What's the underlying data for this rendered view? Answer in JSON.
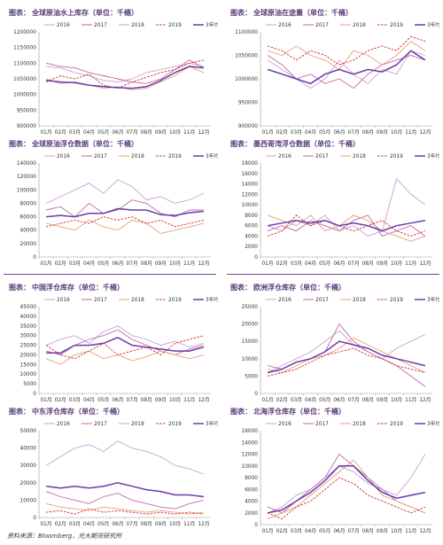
{
  "source_note": "资料来源：Bloomberg，光大期货研究所",
  "colors": {
    "2016": "#c9a0d9",
    "2017": "#c06aa0",
    "2018": "#e4a07a",
    "2019": "#d42a2a",
    "avg": "#6a3aa8"
  },
  "chart_data": [
    {
      "type": "line",
      "title_label": "图表：",
      "title": "全球原油水上库存（单位：千桶）",
      "months": [
        "01月",
        "02月",
        "03月",
        "04月",
        "05月",
        "06月",
        "07月",
        "08月",
        "09月",
        "10月",
        "11月",
        "12月"
      ],
      "yticks": [
        900000,
        950000,
        1000000,
        1050000,
        1100000,
        1150000,
        1200000
      ],
      "ylim": [
        900000,
        1200000
      ],
      "legend": [
        "2016",
        "2017",
        "2018",
        "2019",
        "3年均值"
      ],
      "series": [
        {
          "name": "2016",
          "key": "2016",
          "values": [
            1090000,
            1085000,
            1070000,
            1060000,
            1045000,
            1040000,
            1050000,
            1070000,
            1080000,
            1090000,
            1100000,
            1090000
          ]
        },
        {
          "name": "2017",
          "key": "2017",
          "values": [
            1100000,
            1090000,
            1085000,
            1070000,
            1060000,
            1050000,
            1040000,
            1035000,
            1050000,
            1080000,
            1110000,
            1085000
          ]
        },
        {
          "name": "2018",
          "key": "2018",
          "values": [
            1050000,
            1035000,
            1040000,
            1030000,
            1020000,
            1025000,
            1015000,
            1020000,
            1040000,
            1060000,
            1090000,
            1070000
          ]
        },
        {
          "name": "2019",
          "key": "2019",
          "dashed": true,
          "values": [
            1040000,
            1060000,
            1050000,
            1065000,
            1030000,
            1020000,
            1040000,
            1055000,
            1070000,
            1080000,
            1100000,
            1110000
          ]
        },
        {
          "name": "3年均值",
          "key": "avg",
          "values": [
            1045000,
            1040000,
            1038000,
            1030000,
            1025000,
            1022000,
            1020000,
            1025000,
            1045000,
            1070000,
            1090000,
            1085000
          ]
        }
      ]
    },
    {
      "type": "line",
      "title_label": "图表：",
      "title": "全球原油在途量（单位：千桶）",
      "months": [
        "01月",
        "02月",
        "03月",
        "04月",
        "05月",
        "06月",
        "07月",
        "08月",
        "09月",
        "10月",
        "11月",
        "12月"
      ],
      "yticks": [
        900000,
        950000,
        1000000,
        1050000,
        1100000
      ],
      "ylim": [
        900000,
        1100000
      ],
      "legend": [
        "2016",
        "2017",
        "2018",
        "2019",
        "3年均值"
      ],
      "series": [
        {
          "name": "2016",
          "key": "2016",
          "values": [
            1040000,
            1020000,
            1000000,
            980000,
            1000000,
            1040000,
            1010000,
            990000,
            1020000,
            1010000,
            1060000,
            1050000
          ]
        },
        {
          "name": "2017",
          "key": "2017",
          "values": [
            1050000,
            1030000,
            1000000,
            1010000,
            990000,
            1000000,
            980000,
            1010000,
            1030000,
            1040000,
            1050000,
            1040000
          ]
        },
        {
          "name": "2018",
          "key": "2018",
          "values": [
            1060000,
            1050000,
            1070000,
            1050000,
            1040000,
            1020000,
            1060000,
            1050000,
            1030000,
            1050000,
            1080000,
            1060000
          ]
        },
        {
          "name": "2019",
          "key": "2019",
          "dashed": true,
          "values": [
            1070000,
            1060000,
            1040000,
            1060000,
            1050000,
            1030000,
            1040000,
            1060000,
            1070000,
            1060000,
            1090000,
            1080000
          ]
        },
        {
          "name": "3年均值",
          "key": "avg",
          "values": [
            1020000,
            1010000,
            1000000,
            990000,
            1010000,
            1020000,
            1010000,
            1020000,
            1015000,
            1030000,
            1060000,
            1040000
          ]
        }
      ]
    },
    {
      "type": "line",
      "title_label": "图表：",
      "title": "全球原油浮仓数据（单位：千桶）",
      "months": [
        "01月",
        "02月",
        "03月",
        "04月",
        "05月",
        "06月",
        "07月",
        "08月",
        "09月",
        "10月",
        "11月",
        "12月"
      ],
      "yticks": [
        0,
        20000,
        40000,
        60000,
        80000,
        100000,
        120000,
        140000
      ],
      "ylim": [
        0,
        140000
      ],
      "legend": [
        "2016",
        "2017",
        "2018",
        "2019",
        "3年均值"
      ],
      "series": [
        {
          "name": "2016",
          "key": "2016",
          "values": [
            80000,
            90000,
            100000,
            110000,
            95000,
            115000,
            105000,
            85000,
            90000,
            80000,
            85000,
            95000
          ]
        },
        {
          "name": "2017",
          "key": "2017",
          "values": [
            70000,
            75000,
            60000,
            80000,
            65000,
            70000,
            85000,
            80000,
            65000,
            60000,
            70000,
            70000
          ]
        },
        {
          "name": "2018",
          "key": "2018",
          "values": [
            50000,
            45000,
            40000,
            55000,
            45000,
            40000,
            55000,
            50000,
            35000,
            40000,
            45000,
            50000
          ]
        },
        {
          "name": "2019",
          "key": "2019",
          "dashed": true,
          "values": [
            45000,
            50000,
            55000,
            50000,
            60000,
            55000,
            60000,
            50000,
            55000,
            45000,
            50000,
            55000
          ]
        },
        {
          "name": "3年均值",
          "key": "avg",
          "values": [
            60000,
            62000,
            60000,
            65000,
            65000,
            72000,
            70000,
            70000,
            63000,
            62000,
            66000,
            68000
          ]
        }
      ]
    },
    {
      "type": "line",
      "title_label": "图表：",
      "title": "墨西哥湾浮仓数据（单位：千桶）",
      "months": [
        "01月",
        "02月",
        "03月",
        "04月",
        "05月",
        "06月",
        "07月",
        "08月",
        "09月",
        "10月",
        "11月",
        "12月"
      ],
      "yticks": [
        0,
        2000,
        4000,
        6000,
        8000,
        10000,
        12000,
        14000,
        16000,
        18000
      ],
      "ylim": [
        0,
        18000
      ],
      "legend": [
        "2016",
        "2017",
        "2018",
        "2019",
        "3年均值"
      ],
      "series": [
        {
          "name": "2016",
          "key": "2016",
          "values": [
            6000,
            5000,
            7000,
            6000,
            8000,
            5000,
            6000,
            4000,
            5000,
            15000,
            12000,
            10000
          ]
        },
        {
          "name": "2017",
          "key": "2017",
          "values": [
            5000,
            6000,
            5000,
            7000,
            6000,
            5000,
            7000,
            8000,
            4000,
            5000,
            6000,
            4000
          ]
        },
        {
          "name": "2018",
          "key": "2018",
          "values": [
            8000,
            7000,
            6000,
            8000,
            5000,
            6000,
            8000,
            7000,
            5000,
            4000,
            3000,
            4000
          ]
        },
        {
          "name": "2019",
          "key": "2019",
          "dashed": true,
          "values": [
            4000,
            5000,
            8000,
            6000,
            7000,
            6000,
            5000,
            6000,
            7000,
            5000,
            4000,
            5000
          ]
        },
        {
          "name": "3年均值",
          "key": "avg",
          "values": [
            6000,
            6500,
            7000,
            6500,
            7000,
            6000,
            6500,
            6000,
            5000,
            6000,
            6500,
            7000
          ]
        }
      ]
    },
    {
      "type": "line",
      "title_label": "图表：",
      "title": "中国浮仓库存（单位：千桶）",
      "months": [
        "01月",
        "02月",
        "03月",
        "04月",
        "05月",
        "06月",
        "07月",
        "08月",
        "09月",
        "10月",
        "11月",
        "12月"
      ],
      "yticks": [
        0,
        5000,
        10000,
        15000,
        20000,
        25000,
        30000,
        35000,
        40000,
        45000
      ],
      "ylim": [
        0,
        45000
      ],
      "legend": [
        "2016",
        "2017",
        "2018",
        "2019",
        "3年均值"
      ],
      "series": [
        {
          "name": "2016",
          "key": "2016",
          "values": [
            25000,
            28000,
            30000,
            26000,
            32000,
            35000,
            30000,
            28000,
            25000,
            27000,
            24000,
            26000
          ]
        },
        {
          "name": "2017",
          "key": "2017",
          "values": [
            22000,
            20000,
            25000,
            28000,
            30000,
            33000,
            28000,
            25000,
            22000,
            20000,
            23000,
            25000
          ]
        },
        {
          "name": "2018",
          "key": "2018",
          "values": [
            18000,
            15000,
            20000,
            22000,
            18000,
            20000,
            17000,
            19000,
            22000,
            20000,
            18000,
            20000
          ]
        },
        {
          "name": "2019",
          "key": "2019",
          "dashed": true,
          "values": [
            25000,
            20000,
            18000,
            22000,
            26000,
            20000,
            22000,
            24000,
            20000,
            26000,
            28000,
            30000
          ]
        },
        {
          "name": "3年均值",
          "key": "avg",
          "values": [
            21000,
            21000,
            25000,
            25000,
            26000,
            29000,
            25000,
            24000,
            23000,
            22000,
            22000,
            24000
          ]
        }
      ]
    },
    {
      "type": "line",
      "title_label": "图表：",
      "title": "欧洲浮仓库存（单位：千桶）",
      "months": [
        "01月",
        "02月",
        "03月",
        "04月",
        "05月",
        "06月",
        "07月",
        "08月",
        "09月",
        "10月",
        "11月",
        "12月"
      ],
      "yticks": [
        0,
        5000,
        10000,
        15000,
        20000,
        25000
      ],
      "ylim": [
        0,
        25000
      ],
      "legend": [
        "2016",
        "2017",
        "2018",
        "2019",
        "3年均值"
      ],
      "series": [
        {
          "name": "2016",
          "key": "2016",
          "values": [
            6000,
            8000,
            10000,
            12000,
            15000,
            18000,
            14000,
            12000,
            10000,
            13000,
            15000,
            17000
          ]
        },
        {
          "name": "2017",
          "key": "2017",
          "values": [
            8000,
            7000,
            9000,
            10000,
            12000,
            20000,
            15000,
            12000,
            10000,
            8000,
            5000,
            2000
          ]
        },
        {
          "name": "2018",
          "key": "2018",
          "values": [
            7000,
            6000,
            8000,
            10000,
            11000,
            13000,
            16000,
            14000,
            12000,
            10000,
            8000,
            6000
          ]
        },
        {
          "name": "2019",
          "key": "2019",
          "dashed": true,
          "values": [
            5000,
            6000,
            7000,
            9000,
            11000,
            12000,
            13000,
            11000,
            10000,
            8000,
            7000,
            6000
          ]
        },
        {
          "name": "3年均值",
          "key": "avg",
          "values": [
            6000,
            7000,
            9000,
            10000,
            12000,
            15000,
            14000,
            13000,
            11000,
            10000,
            9000,
            8000
          ]
        }
      ]
    },
    {
      "type": "line",
      "title_label": "图表：",
      "title": "中东浮仓库存（单位：千桶）",
      "months": [
        "01月",
        "02月",
        "03月",
        "04月",
        "05月",
        "06月",
        "07月",
        "08月",
        "09月",
        "10月",
        "11月",
        "12月"
      ],
      "yticks": [
        0,
        10000,
        20000,
        30000,
        40000,
        50000
      ],
      "ylim": [
        0,
        50000
      ],
      "legend": [
        "2016",
        "2017",
        "2018",
        "2019",
        "3年均值"
      ],
      "series": [
        {
          "name": "2016",
          "key": "2016",
          "values": [
            30000,
            35000,
            40000,
            42000,
            38000,
            44000,
            40000,
            38000,
            35000,
            30000,
            28000,
            25000
          ]
        },
        {
          "name": "2017",
          "key": "2017",
          "values": [
            15000,
            12000,
            10000,
            8000,
            12000,
            14000,
            10000,
            8000,
            6000,
            5000,
            8000,
            10000
          ]
        },
        {
          "name": "2018",
          "key": "2018",
          "values": [
            8000,
            6000,
            5000,
            4000,
            6000,
            5000,
            4000,
            3000,
            4000,
            3000,
            2000,
            3000
          ]
        },
        {
          "name": "2019",
          "key": "2019",
          "dashed": true,
          "values": [
            3000,
            4000,
            2000,
            5000,
            3000,
            4000,
            3000,
            2000,
            3000,
            2000,
            3000,
            2000
          ]
        },
        {
          "name": "3年均值",
          "key": "avg",
          "values": [
            18000,
            17000,
            18000,
            17000,
            18000,
            20000,
            18000,
            16000,
            15000,
            13000,
            13000,
            12000
          ]
        }
      ]
    },
    {
      "type": "line",
      "title_label": "图表：",
      "title": "北海浮仓库存（单位：千桶）",
      "months": [
        "01月",
        "02月",
        "03月",
        "04月",
        "05月",
        "06月",
        "07月",
        "08月",
        "09月",
        "10月",
        "11月",
        "12月"
      ],
      "yticks": [
        0,
        2000,
        4000,
        6000,
        8000,
        10000,
        12000,
        14000,
        16000
      ],
      "ylim": [
        0,
        16000
      ],
      "legend": [
        "2016",
        "2017",
        "2018",
        "2019",
        "3年均值"
      ],
      "series": [
        {
          "name": "2016",
          "key": "2016",
          "values": [
            2000,
            3000,
            5000,
            6000,
            8000,
            10000,
            9000,
            7000,
            6000,
            5000,
            8000,
            12000
          ]
        },
        {
          "name": "2017",
          "key": "2017",
          "values": [
            3000,
            2000,
            4000,
            6000,
            8000,
            12000,
            10000,
            8000,
            6000,
            4000,
            3000,
            2000
          ]
        },
        {
          "name": "2018",
          "key": "2018",
          "values": [
            1000,
            2000,
            3000,
            5000,
            7000,
            9000,
            11000,
            8000,
            5000,
            4000,
            3000,
            2000
          ]
        },
        {
          "name": "2019",
          "key": "2019",
          "dashed": true,
          "values": [
            2000,
            1000,
            3000,
            4000,
            6000,
            8000,
            7000,
            5000,
            4000,
            3000,
            2000,
            3000
          ]
        },
        {
          "name": "3年均值",
          "key": "avg",
          "values": [
            2000,
            2500,
            4000,
            5500,
            7500,
            10000,
            10000,
            7500,
            5500,
            4500,
            5000,
            5500
          ]
        }
      ]
    }
  ]
}
